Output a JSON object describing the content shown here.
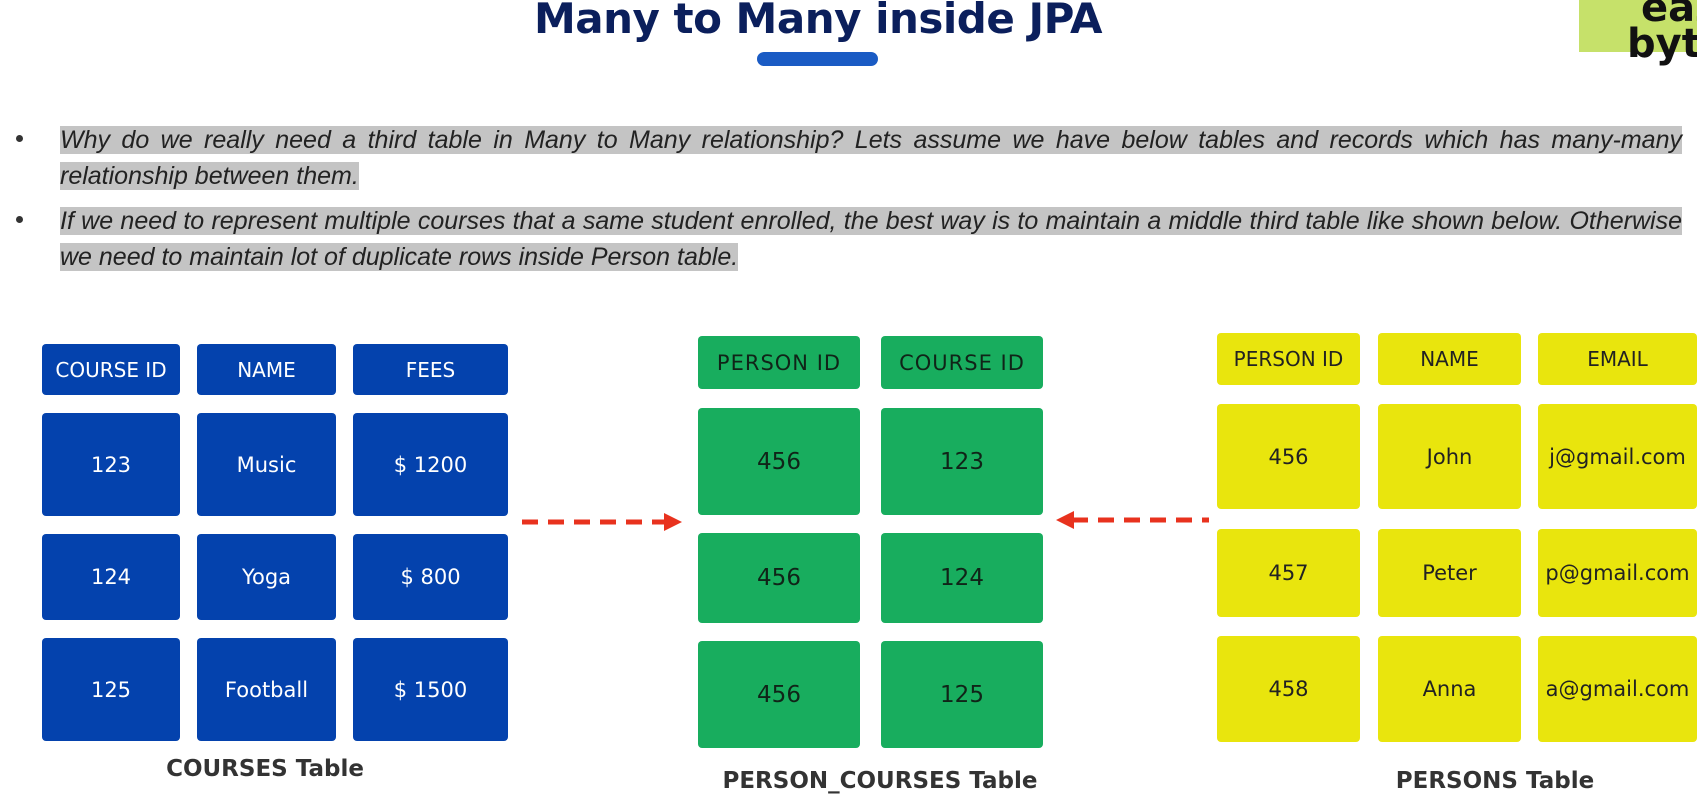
{
  "title": "Many to Many inside JPA",
  "logo": {
    "line1": "eaz",
    "line2": "byt"
  },
  "bullets": [
    "Why do we really need a third table in Many to Many relationship? Lets assume we have below tables and records which has many-many relationship between them.",
    "If we need to represent multiple courses that a same student enrolled, the best way is to maintain a middle third table like shown below. Otherwise we need to maintain lot of duplicate rows inside Person table."
  ],
  "courses": {
    "caption": "COURSES Table",
    "headers": [
      "COURSE ID",
      "NAME",
      "FEES"
    ],
    "rows": [
      [
        "123",
        "Music",
        "$ 1200"
      ],
      [
        "124",
        "Yoga",
        "$ 800"
      ],
      [
        "125",
        "Football",
        "$ 1500"
      ]
    ],
    "color": "#0442ad"
  },
  "person_courses": {
    "caption": "PERSON_COURSES Table",
    "headers": [
      "PERSON ID",
      "COURSE ID"
    ],
    "rows": [
      [
        "456",
        "123"
      ],
      [
        "456",
        "124"
      ],
      [
        "456",
        "125"
      ]
    ],
    "color": "#18ad5e"
  },
  "persons": {
    "caption": "PERSONS Table",
    "headers": [
      "PERSON ID",
      "NAME",
      "EMAIL"
    ],
    "rows": [
      [
        "456",
        "John",
        "j@gmail.com"
      ],
      [
        "457",
        "Peter",
        "p@gmail.com"
      ],
      [
        "458",
        "Anna",
        "a@gmail.com"
      ]
    ],
    "color": "#e9e50d"
  },
  "arrow_color": "#e8321e"
}
